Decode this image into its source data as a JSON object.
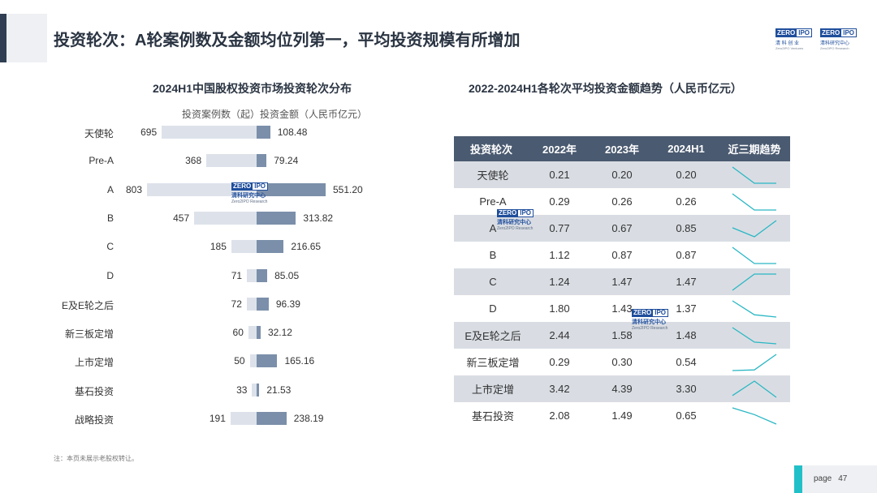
{
  "header": {
    "title": "投资轮次：A轮案例数及金额均位列第一，平均投资规模有所增加",
    "logo_left": {
      "mark_a": "ZERO",
      "mark_b": "IPO",
      "sub": "清 科 创 业",
      "sub2": "Zero2IPO Ventures"
    },
    "logo_right": {
      "mark_a": "ZERO",
      "mark_b": "IPO",
      "sub": "清科研究中心",
      "sub2": "Zero2IPO Research"
    }
  },
  "chart_data": [
    {
      "type": "bar",
      "title": "2024H1中国股权投资市场投资轮次分布",
      "legend": [
        "投资案例数（起）",
        "投资金额（人民币亿元）"
      ],
      "categories": [
        "天使轮",
        "Pre-A",
        "A",
        "B",
        "C",
        "D",
        "E及E轮之后",
        "新三板定增",
        "上市定增",
        "基石投资",
        "战略投资"
      ],
      "series": [
        {
          "name": "投资案例数（起）",
          "values": [
            695,
            368,
            803,
            457,
            185,
            71,
            72,
            60,
            50,
            33,
            191
          ]
        },
        {
          "name": "投资金额（人民币亿元）",
          "values": [
            "108.48",
            "79.24",
            "551.20",
            "313.82",
            "216.65",
            "85.05",
            "96.39",
            "32.12",
            "165.16",
            "21.53",
            "238.19"
          ]
        }
      ],
      "colors": {
        "count": "#dde2ea",
        "amount": "#7b8faa"
      }
    },
    {
      "type": "table",
      "title": "2022-2024H1各轮次平均投资金额趋势（人民币亿元）",
      "columns": [
        "投资轮次",
        "2022年",
        "2023年",
        "2024H1",
        "近三期趋势"
      ],
      "rows": [
        {
          "round": "天使轮",
          "v2022": "0.21",
          "v2023": "0.20",
          "v2024": "0.20"
        },
        {
          "round": "Pre-A",
          "v2022": "0.29",
          "v2023": "0.26",
          "v2024": "0.26"
        },
        {
          "round": "A",
          "v2022": "0.77",
          "v2023": "0.67",
          "v2024": "0.85"
        },
        {
          "round": "B",
          "v2022": "1.12",
          "v2023": "0.87",
          "v2024": "0.87"
        },
        {
          "round": "C",
          "v2022": "1.24",
          "v2023": "1.47",
          "v2024": "1.47"
        },
        {
          "round": "D",
          "v2022": "1.80",
          "v2023": "1.43",
          "v2024": "1.37"
        },
        {
          "round": "E及E轮之后",
          "v2022": "2.44",
          "v2023": "1.58",
          "v2024": "1.48"
        },
        {
          "round": "新三板定增",
          "v2022": "0.29",
          "v2023": "0.30",
          "v2024": "0.54"
        },
        {
          "round": "上市定增",
          "v2022": "3.42",
          "v2023": "4.39",
          "v2024": "3.30"
        },
        {
          "round": "基石投资",
          "v2022": "2.08",
          "v2023": "1.49",
          "v2024": "0.65"
        }
      ],
      "colors": {
        "header": "#4a5a70",
        "alt_row": "#d9dde3",
        "sparkline": "#2ab7c4"
      }
    }
  ],
  "watermark": {
    "mark_a": "ZERO",
    "mark_b": "IPO",
    "s1": "清科研究中心",
    "s2": "Zero2IPO Research"
  },
  "footer": {
    "note": "注：本页未展示老股权转让。",
    "page_label": "page",
    "page_number": "47"
  }
}
